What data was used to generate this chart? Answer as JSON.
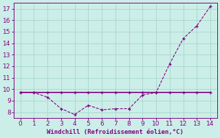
{
  "x": [
    0,
    1,
    2,
    3,
    4,
    5,
    6,
    7,
    8,
    9,
    10,
    11,
    12,
    13,
    14
  ],
  "y_windchill": [
    9.7,
    9.7,
    9.3,
    8.3,
    7.8,
    8.6,
    8.2,
    8.3,
    8.3,
    9.5,
    9.7,
    12.2,
    14.4,
    15.5,
    17.2
  ],
  "y_temp": [
    9.7,
    9.7,
    9.7,
    9.7,
    9.7,
    9.7,
    9.7,
    9.7,
    9.7,
    9.7,
    9.7,
    9.7,
    9.7,
    9.7,
    9.7
  ],
  "line_color": "#800080",
  "marker": "+",
  "marker_color": "#800080",
  "bg_color": "#cceee8",
  "grid_color": "#aad8d0",
  "tick_color": "#800080",
  "xlabel": "Windchill (Refroidissement éolien,°C)",
  "xlabel_color": "#800080",
  "xlim": [
    -0.5,
    14.5
  ],
  "ylim": [
    7.5,
    17.5
  ],
  "xticks": [
    0,
    1,
    2,
    3,
    4,
    5,
    6,
    7,
    8,
    9,
    10,
    11,
    12,
    13,
    14
  ],
  "yticks": [
    8,
    9,
    10,
    11,
    12,
    13,
    14,
    15,
    16,
    17
  ],
  "figsize": [
    3.2,
    2.0
  ],
  "dpi": 100
}
